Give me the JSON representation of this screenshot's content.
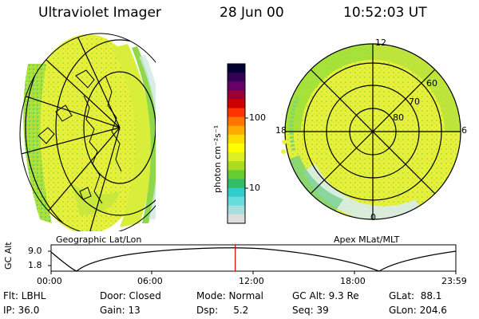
{
  "header": {
    "instrument": "Ultraviolet Imager",
    "date": "28 Jun 00",
    "time": "10:52:03 UT"
  },
  "left_panel": {
    "caption": "Geographic Lat/Lon"
  },
  "right_panel": {
    "caption": "Apex MLat/MLT",
    "lat_labels": [
      "60",
      "70",
      "80"
    ],
    "mlt_labels": {
      "top": "12",
      "left": "18",
      "right": "6",
      "bottom": "0"
    }
  },
  "colorbar": {
    "unit_label": "photon cm⁻²s⁻¹",
    "tick_labels": [
      "100",
      "10"
    ],
    "colors": [
      "#000033",
      "#330055",
      "#660066",
      "#990033",
      "#cc0000",
      "#ff3300",
      "#ff7700",
      "#ffaa00",
      "#ffdd00",
      "#ffff00",
      "#ddee22",
      "#aadd22",
      "#66cc33",
      "#33bb66",
      "#33cccc",
      "#66dddd",
      "#aadddd",
      "#dddddd"
    ]
  },
  "altitude_plot": {
    "ylabel": "GC Alt",
    "yticks": [
      "9.0",
      "1.8"
    ],
    "xticks": [
      "00:00",
      "06:00",
      "12:00",
      "18:00",
      "23:59"
    ],
    "current_time_fraction": 0.455
  },
  "info": {
    "filter": "Flt: LBHL",
    "ip": "IP: 36.0",
    "door": "Door: Closed",
    "gain": "Gain: 13",
    "mode": "Mode: Normal",
    "dsp": "Dsp:     5.2",
    "gc_alt": "GC Alt: 9.3 Re",
    "seq": "Seq: 39",
    "glat": "GLat:  88.1",
    "glon": "GLon: 204.6"
  },
  "colors": {
    "aurora_yellow": "#eef23a",
    "aurora_green": "#9fe03a",
    "aurora_cyan": "#5fd0c8",
    "marker_red": "#cc0000"
  }
}
